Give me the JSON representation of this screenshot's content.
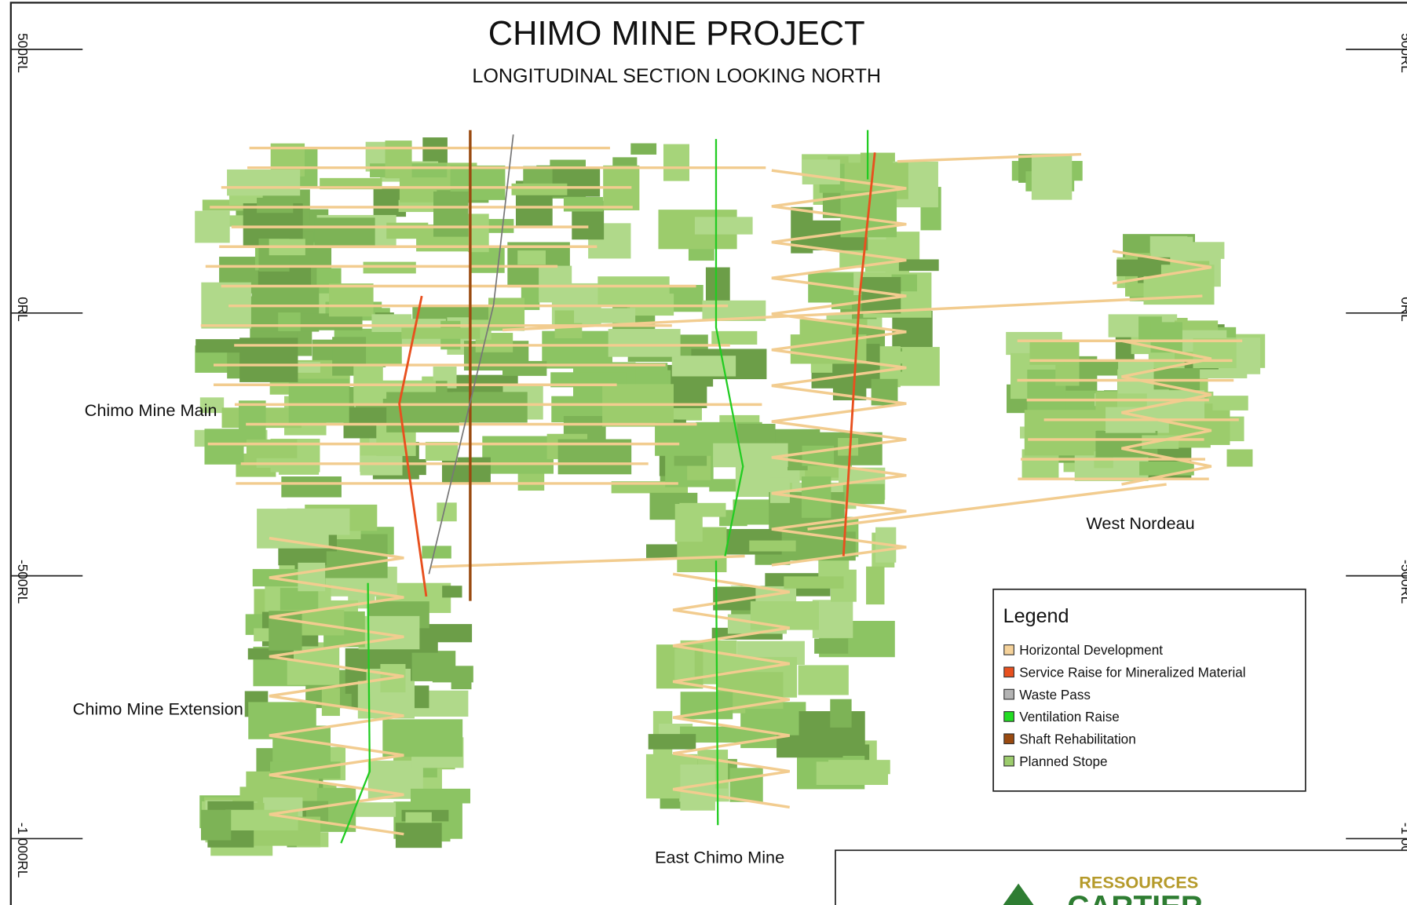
{
  "header": {
    "title": "CHIMO MINE PROJECT",
    "subtitle": "LONGITUDINAL SECTION LOOKING NORTH"
  },
  "elevations": [
    "500RL",
    "0RL",
    "-500RL",
    "-1 000RL"
  ],
  "zones": [
    "Chimo Mine Main",
    "Chimo Mine Extension",
    "East Chimo Mine",
    "West Nordeau"
  ],
  "legend": {
    "title": "Legend",
    "items": [
      {
        "label": "Horizontal Development",
        "color": "#f5d29a"
      },
      {
        "label": "Service Raise for Mineralized Material",
        "color": "#e8501e"
      },
      {
        "label": "Waste Pass",
        "color": "#b3b3b3"
      },
      {
        "label": "Ventilation Raise",
        "color": "#22dd22"
      },
      {
        "label": "Shaft Rehabilitation",
        "color": "#9a4a10"
      },
      {
        "label": "Planned Stope",
        "color": "#9ccc6c"
      }
    ]
  },
  "logo": {
    "line1": "RESSOURCES",
    "line2": "CARTIER"
  }
}
